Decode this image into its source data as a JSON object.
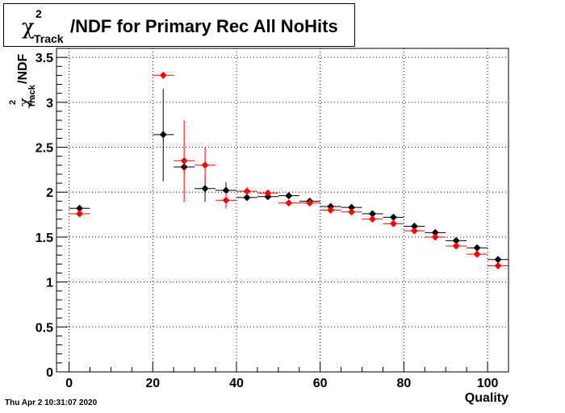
{
  "title": {
    "symbol": "χ",
    "superscript": "2",
    "subscript": "Track",
    "text": "/NDF for Primary Rec All NoHits"
  },
  "ylabel": {
    "symbol": "χ",
    "superscript": "2",
    "subscript": "Track",
    "text": "/NDF"
  },
  "xlabel": "Quality",
  "footer": "Thu Apr  2 10:31:07 2020",
  "chart_data": {
    "type": "scatter",
    "xlabel": "Quality",
    "ylabel": "χ²_Track/NDF",
    "xlim": [
      -3,
      105
    ],
    "ylim": [
      0,
      3.6
    ],
    "grid": true,
    "xticks": [
      0,
      20,
      40,
      60,
      80,
      100
    ],
    "yticks": [
      0,
      0.5,
      1,
      1.5,
      2,
      2.5,
      3,
      3.5
    ],
    "series": [
      {
        "color": "#000000",
        "points": [
          {
            "x": 2.5,
            "y": 1.82,
            "ylo": 1.8,
            "yhi": 1.84
          },
          {
            "x": 22.5,
            "y": 2.64,
            "ylo": 2.12,
            "yhi": 3.15
          },
          {
            "x": 27.5,
            "y": 2.28,
            "ylo": 2.22,
            "yhi": 2.34
          },
          {
            "x": 32.5,
            "y": 2.04,
            "ylo": 1.89,
            "yhi": 2.18
          },
          {
            "x": 37.5,
            "y": 2.02,
            "ylo": 1.93,
            "yhi": 2.11
          },
          {
            "x": 42.5,
            "y": 1.94,
            "ylo": 1.91,
            "yhi": 1.97
          },
          {
            "x": 47.5,
            "y": 1.95,
            "ylo": 1.93,
            "yhi": 1.97
          },
          {
            "x": 52.5,
            "y": 1.96,
            "ylo": 1.94,
            "yhi": 1.98
          },
          {
            "x": 57.5,
            "y": 1.9,
            "ylo": 1.88,
            "yhi": 1.92
          },
          {
            "x": 62.5,
            "y": 1.84,
            "ylo": 1.82,
            "yhi": 1.86
          },
          {
            "x": 67.5,
            "y": 1.83,
            "ylo": 1.81,
            "yhi": 1.85
          },
          {
            "x": 72.5,
            "y": 1.76,
            "ylo": 1.74,
            "yhi": 1.78
          },
          {
            "x": 77.5,
            "y": 1.72,
            "ylo": 1.7,
            "yhi": 1.74
          },
          {
            "x": 82.5,
            "y": 1.62,
            "ylo": 1.6,
            "yhi": 1.64
          },
          {
            "x": 87.5,
            "y": 1.55,
            "ylo": 1.53,
            "yhi": 1.57
          },
          {
            "x": 92.5,
            "y": 1.46,
            "ylo": 1.44,
            "yhi": 1.48
          },
          {
            "x": 97.5,
            "y": 1.38,
            "ylo": 1.36,
            "yhi": 1.4
          },
          {
            "x": 102.5,
            "y": 1.25,
            "ylo": 1.23,
            "yhi": 1.27
          }
        ]
      },
      {
        "color": "#ff0000",
        "points": [
          {
            "x": 2.5,
            "y": 1.76,
            "ylo": 1.74,
            "yhi": 1.78
          },
          {
            "x": 22.5,
            "y": 3.3,
            "ylo": 3.28,
            "yhi": 3.32
          },
          {
            "x": 27.5,
            "y": 2.35,
            "ylo": 1.89,
            "yhi": 2.8
          },
          {
            "x": 32.5,
            "y": 2.3,
            "ylo": 2.1,
            "yhi": 2.5
          },
          {
            "x": 37.5,
            "y": 1.91,
            "ylo": 1.82,
            "yhi": 2.0
          },
          {
            "x": 42.5,
            "y": 2.01,
            "ylo": 1.96,
            "yhi": 2.06
          },
          {
            "x": 47.5,
            "y": 1.99,
            "ylo": 1.96,
            "yhi": 2.02
          },
          {
            "x": 52.5,
            "y": 1.88,
            "ylo": 1.86,
            "yhi": 1.9
          },
          {
            "x": 57.5,
            "y": 1.88,
            "ylo": 1.86,
            "yhi": 1.9
          },
          {
            "x": 62.5,
            "y": 1.8,
            "ylo": 1.78,
            "yhi": 1.82
          },
          {
            "x": 67.5,
            "y": 1.78,
            "ylo": 1.76,
            "yhi": 1.8
          },
          {
            "x": 72.5,
            "y": 1.7,
            "ylo": 1.68,
            "yhi": 1.72
          },
          {
            "x": 77.5,
            "y": 1.65,
            "ylo": 1.63,
            "yhi": 1.67
          },
          {
            "x": 82.5,
            "y": 1.57,
            "ylo": 1.55,
            "yhi": 1.59
          },
          {
            "x": 87.5,
            "y": 1.5,
            "ylo": 1.48,
            "yhi": 1.52
          },
          {
            "x": 92.5,
            "y": 1.4,
            "ylo": 1.38,
            "yhi": 1.42
          },
          {
            "x": 97.5,
            "y": 1.31,
            "ylo": 1.29,
            "yhi": 1.33
          },
          {
            "x": 102.5,
            "y": 1.18,
            "ylo": 1.16,
            "yhi": 1.2
          }
        ]
      }
    ]
  }
}
